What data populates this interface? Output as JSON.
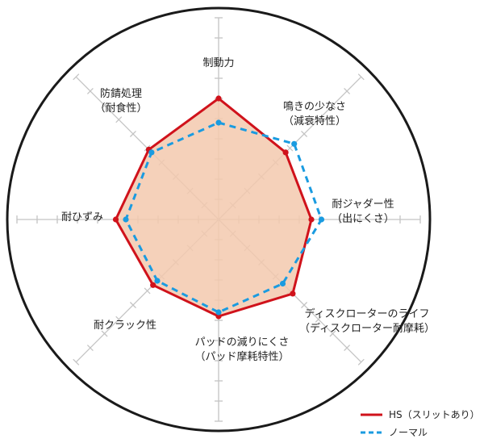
{
  "colors": {
    "hs": "#d0121b",
    "normal": "#1a9be0",
    "fill": "#f3c9ae",
    "grid": "#c4c4c4",
    "frame": "#1a1a1a"
  },
  "chart_data": {
    "type": "radar",
    "title": "",
    "axes": [
      "制動力",
      "鳴きの少なさ（減衰特性）",
      "耐ジャダー性（出にくさ）",
      "ディスクローターのライフ（ディスクローター耐摩耗）",
      "パッドの減りにくさ（パッド摩耗特性）",
      "耐クラック性",
      "耐ひずみ",
      "防錆処理（耐食性）"
    ],
    "axis_label_lines": [
      [
        "制動力"
      ],
      [
        "鳴きの少なさ",
        "（減衰特性）"
      ],
      [
        "耐ジャダー性",
        "（出にくさ）"
      ],
      [
        "ディスクローターのライフ",
        "（ディスクローター耐摩耗）"
      ],
      [
        "パッドの減りにくさ",
        "（パッド摩耗特性）"
      ],
      [
        "耐クラック性"
      ],
      [
        "耐ひずみ"
      ],
      [
        "防錆処理",
        "（耐食性）"
      ]
    ],
    "rmax": 10,
    "rings": 10,
    "grid": true,
    "legend_position": "bottom-right",
    "series": [
      {
        "name": "HS（スリットあり）",
        "color_key": "hs",
        "line": "solid",
        "filled": true,
        "values": [
          6.0,
          4.7,
          4.6,
          5.2,
          4.8,
          4.6,
          5.1,
          4.9
        ]
      },
      {
        "name": "ノーマル",
        "color_key": "normal",
        "line": "dashed",
        "filled": false,
        "values": [
          4.8,
          5.3,
          5.1,
          4.5,
          4.6,
          4.3,
          4.6,
          4.7
        ]
      }
    ]
  }
}
